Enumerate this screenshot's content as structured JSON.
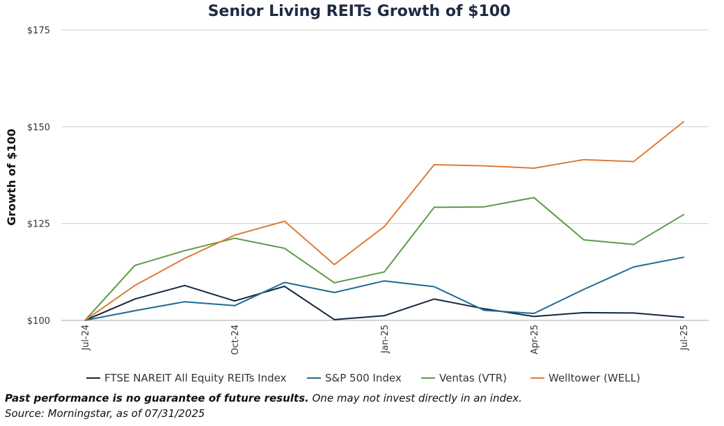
{
  "colors": {
    "ftse": "#12273c",
    "sp500": "#1e6a93",
    "ventas": "#5b9a46",
    "welltower": "#de7a37"
  },
  "chart_data": {
    "type": "line",
    "title": "Senior Living REITs Growth of $100",
    "ylabel": "Growth of $100",
    "xlabel": "",
    "x": [
      "Jul-24",
      "Aug-24",
      "Sep-24",
      "Oct-24",
      "Nov-24",
      "Dec-24",
      "Jan-25",
      "Feb-25",
      "Mar-25",
      "Apr-25",
      "May-25",
      "Jun-25",
      "Jul-25"
    ],
    "x_tick_labels": [
      "Jul-24",
      "Oct-24",
      "Jan-25",
      "Apr-25",
      "Jul-25"
    ],
    "ylim": [
      100,
      175
    ],
    "y_ticks": [
      100,
      125,
      150,
      175
    ],
    "y_tick_labels": [
      "$100",
      "$125",
      "$150",
      "$175"
    ],
    "grid": true,
    "legend_position": "bottom",
    "series": [
      {
        "name": "FTSE NAREIT All Equity REITs Index",
        "color_key": "ftse",
        "values": [
          100,
          105.5,
          109,
          105,
          108.8,
          100.2,
          101.2,
          105.5,
          103,
          101,
          102,
          101.9,
          100.8
        ]
      },
      {
        "name": "S&P 500 Index",
        "color_key": "sp500",
        "values": [
          100,
          102.5,
          104.8,
          103.8,
          109.8,
          107.2,
          110.2,
          108.7,
          102.6,
          101.8,
          108,
          113.8,
          116.3
        ]
      },
      {
        "name": "Ventas (VTR)",
        "color_key": "ventas",
        "values": [
          100,
          114.2,
          118,
          121.2,
          118.6,
          109.7,
          112.5,
          129.2,
          129.3,
          131.7,
          120.8,
          119.6,
          127.3
        ]
      },
      {
        "name": "Welltower (WELL)",
        "color_key": "welltower",
        "values": [
          100,
          109,
          116,
          122,
          125.6,
          114.4,
          124.2,
          140.2,
          139.9,
          139.3,
          141.5,
          141,
          151.3
        ]
      }
    ]
  },
  "footnote": {
    "bold": "Past performance is no guarantee of future results.",
    "rest": " One may not invest directly in an index.",
    "source": "Source: Morningstar, as of 07/31/2025"
  }
}
